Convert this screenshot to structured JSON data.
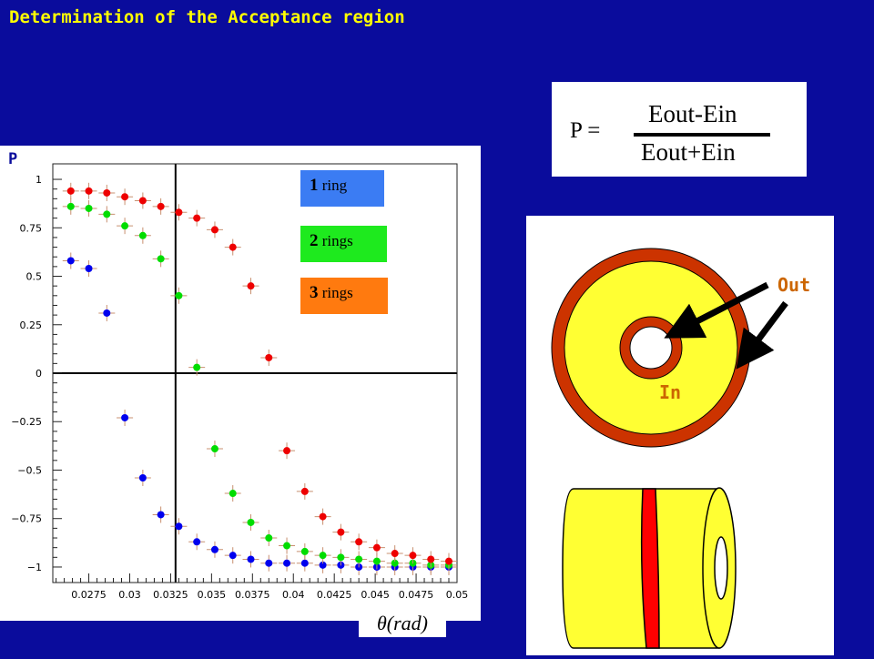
{
  "title": "Determination of the Acceptance region",
  "formula": {
    "lhs": "P =",
    "numerator": "Eout-Ein",
    "denominator": "Eout+Ein"
  },
  "legend": [
    {
      "num": "1",
      "label": "ring",
      "color": "#3b7cf3"
    },
    {
      "num": "2",
      "label": "rings",
      "color": "#1eea1e"
    },
    {
      "num": "3",
      "label": "rings",
      "color": "#ff7a0f"
    }
  ],
  "diagram": {
    "out_label": "Out",
    "in_label": "In",
    "colors": {
      "outer_ring": "#cc3300",
      "fill": "#ffff33",
      "band": "#ff0000"
    }
  },
  "chart_data": {
    "type": "scatter",
    "ylabel": "P",
    "xlabel": "θ(rad)",
    "xlim": [
      0.0253,
      0.05
    ],
    "ylim": [
      -1.08,
      1.08
    ],
    "x_ticks": [
      "0.0275",
      "0.03",
      "0.0325",
      "0.035",
      "0.0375",
      "0.04",
      "0.0425",
      "0.045",
      "0.0475",
      "0.05"
    ],
    "y_ticks": [
      "1",
      "0.75",
      "0.5",
      "0.25",
      "0",
      "-0.25",
      "-0.5",
      "-0.75",
      "-1"
    ],
    "reference_lines": {
      "x": 0.0328,
      "y": 0
    },
    "series": [
      {
        "name": "1 ring",
        "color": "#0000ee",
        "x": [
          0.0264,
          0.0275,
          0.0286,
          0.0297,
          0.0308,
          0.0319,
          0.033,
          0.0341,
          0.0352,
          0.0363,
          0.0374,
          0.0385,
          0.0396,
          0.0407,
          0.0418,
          0.0429,
          0.044,
          0.0451,
          0.0462,
          0.0473,
          0.0484,
          0.0495
        ],
        "y": [
          0.58,
          0.54,
          0.31,
          -0.23,
          -0.54,
          -0.73,
          -0.79,
          -0.87,
          -0.91,
          -0.94,
          -0.96,
          -0.98,
          -0.98,
          -0.98,
          -0.99,
          -0.99,
          -1.0,
          -1.0,
          -1.0,
          -1.0,
          -1.0,
          -1.0
        ]
      },
      {
        "name": "2 rings",
        "color": "#00dd00",
        "x": [
          0.0264,
          0.0275,
          0.0286,
          0.0297,
          0.0308,
          0.0319,
          0.033,
          0.0341,
          0.0352,
          0.0363,
          0.0374,
          0.0385,
          0.0396,
          0.0407,
          0.0418,
          0.0429,
          0.044,
          0.0451,
          0.0462,
          0.0473,
          0.0484,
          0.0495
        ],
        "y": [
          0.86,
          0.85,
          0.82,
          0.76,
          0.71,
          0.59,
          0.4,
          0.03,
          -0.39,
          -0.62,
          -0.77,
          -0.85,
          -0.89,
          -0.92,
          -0.94,
          -0.95,
          -0.96,
          -0.97,
          -0.98,
          -0.98,
          -0.99,
          -0.99
        ]
      },
      {
        "name": "3 rings",
        "color": "#ee0000",
        "x": [
          0.0264,
          0.0275,
          0.0286,
          0.0297,
          0.0308,
          0.0319,
          0.033,
          0.0341,
          0.0352,
          0.0363,
          0.0374,
          0.0385,
          0.0396,
          0.0407,
          0.0418,
          0.0429,
          0.044,
          0.0451,
          0.0462,
          0.0473,
          0.0484,
          0.0495
        ],
        "y": [
          0.94,
          0.94,
          0.93,
          0.91,
          0.89,
          0.86,
          0.83,
          0.8,
          0.74,
          0.65,
          0.45,
          0.08,
          -0.4,
          -0.61,
          -0.74,
          -0.82,
          -0.87,
          -0.9,
          -0.93,
          -0.94,
          -0.96,
          -0.97
        ]
      }
    ]
  }
}
